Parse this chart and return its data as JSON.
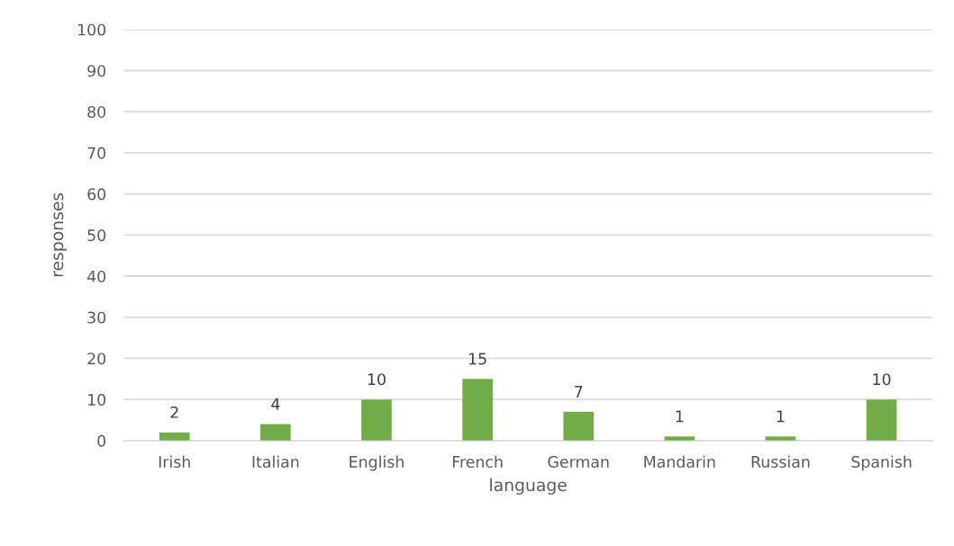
{
  "chart_data": {
    "type": "bar",
    "xlabel": "language",
    "ylabel": "responses",
    "categories": [
      "Irish",
      "Italian",
      "English",
      "French",
      "German",
      "Mandarin",
      "Russian",
      "Spanish"
    ],
    "values": [
      2,
      4,
      10,
      15,
      7,
      1,
      1,
      10
    ],
    "color": "#70ad47",
    "ylim": [
      0,
      100
    ],
    "yticks": [
      0,
      10,
      20,
      30,
      40,
      50,
      60,
      70,
      80,
      90,
      100
    ],
    "grid": "y",
    "data_labels": true,
    "legend": false
  }
}
